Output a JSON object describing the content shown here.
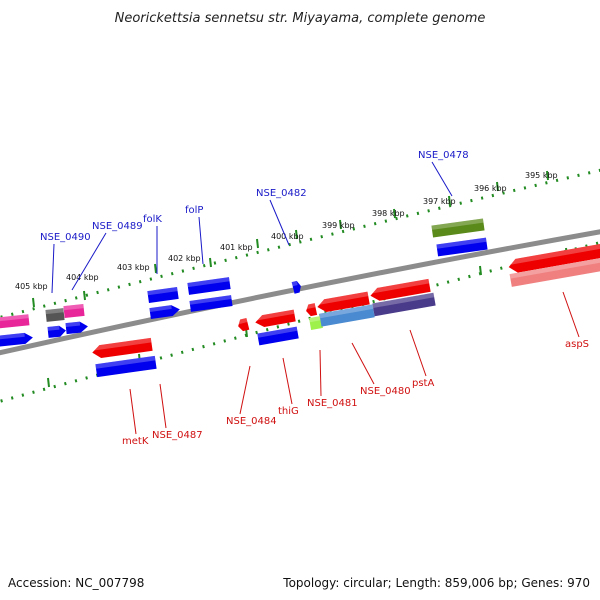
{
  "title": "Neorickettsia sennetsu str. Miyayama, complete genome",
  "footer": {
    "accession": "Accession: NC_007798",
    "summary": "Topology: circular; Length: 859,006 bp; Genes: 970"
  },
  "colors": {
    "backbone": "#8c8c8c",
    "tick": "#228b22",
    "forward_gene": "#0000ee",
    "reverse_gene": "#ee0000",
    "label_blue": "#1a1ac8",
    "label_red": "#d01010"
  },
  "tick_labels": [
    "405 kbp",
    "404 kbp",
    "403 kbp",
    "402 kbp",
    "401 kbp",
    "400 kbp",
    "399 kbp",
    "398 kbp",
    "397 kbp",
    "396 kbp",
    "395 kbp"
  ],
  "gene_labels_forward": [
    "NSE_0490",
    "NSE_0489",
    "folK",
    "folP",
    "NSE_0482",
    "NSE_0478"
  ],
  "gene_labels_reverse": [
    "metK",
    "NSE_0487",
    "NSE_0484",
    "thiG",
    "NSE_0481",
    "NSE_0480",
    "pstA",
    "aspS"
  ]
}
